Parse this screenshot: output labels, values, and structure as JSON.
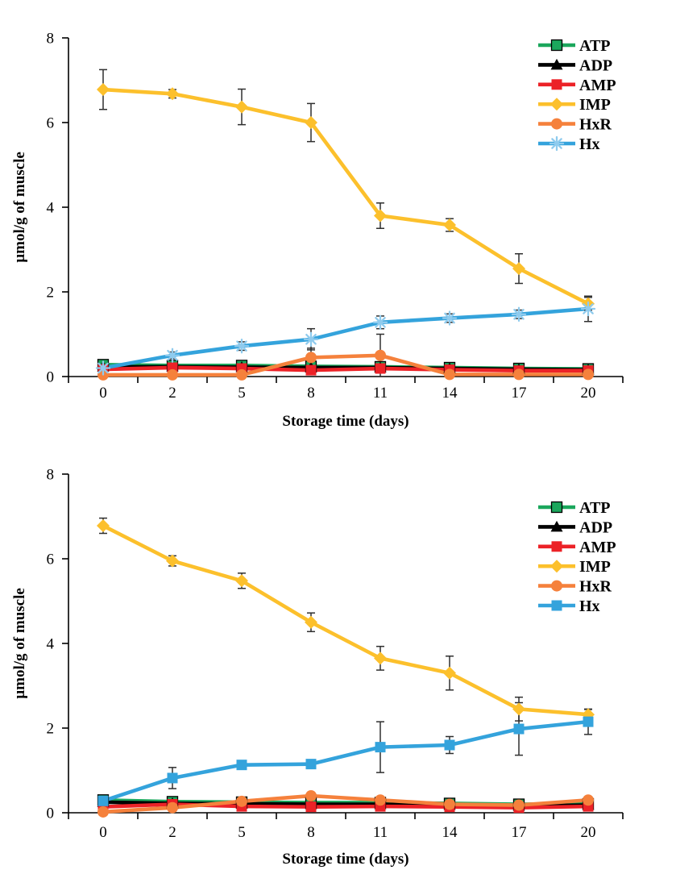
{
  "page": {
    "background": "#ffffff"
  },
  "chart_data": [
    {
      "type": "line",
      "panel": "top",
      "xlabel": "Storage time (days)",
      "ylabel": "µmol/g of muscle",
      "x_categories": [
        "0",
        "2",
        "5",
        "8",
        "11",
        "14",
        "17",
        "20"
      ],
      "ylim": [
        0,
        8
      ],
      "yticks": [
        "0",
        "2",
        "4",
        "6",
        "8"
      ],
      "grid": false,
      "legend_position": "upper-right-inside",
      "legend_entries": [
        "ATP",
        "ADP",
        "AMP",
        "IMP",
        "HxR",
        "Hx"
      ],
      "series": [
        {
          "name": "ATP",
          "color": "#1BA75C",
          "marker": "square",
          "marker_fill": "#1BA75C",
          "marker_stroke": "#000000",
          "values": [
            0.28,
            0.26,
            0.26,
            0.24,
            0.23,
            0.21,
            0.19,
            0.18
          ],
          "errors": [
            0.05,
            0,
            0,
            0.08,
            0,
            0,
            0,
            0
          ]
        },
        {
          "name": "ADP",
          "color": "#000000",
          "marker": "triangle",
          "marker_fill": "#000000",
          "values": [
            0.23,
            0.23,
            0.22,
            0.21,
            0.21,
            0.19,
            0.17,
            0.16
          ],
          "errors": [
            0,
            0,
            0,
            0,
            0,
            0,
            0,
            0
          ]
        },
        {
          "name": "AMP",
          "color": "#EC2227",
          "marker": "square",
          "marker_fill": "#EC2227",
          "values": [
            0.17,
            0.21,
            0.19,
            0.15,
            0.19,
            0.16,
            0.14,
            0.14
          ],
          "errors": [
            0,
            0,
            0,
            0,
            0,
            0,
            0,
            0
          ]
        },
        {
          "name": "IMP",
          "color": "#FCC02C",
          "marker": "diamond",
          "marker_fill": "#FCC02C",
          "values": [
            6.78,
            6.68,
            6.37,
            6.0,
            3.8,
            3.58,
            2.55,
            1.72
          ],
          "errors": [
            0.47,
            0.1,
            0.42,
            0.45,
            0.3,
            0.15,
            0.35,
            0.15
          ]
        },
        {
          "name": "HxR",
          "color": "#F5813C",
          "marker": "circle",
          "marker_fill": "#F5813C",
          "values": [
            0.04,
            0.04,
            0.04,
            0.45,
            0.5,
            0.05,
            0.05,
            0.05
          ],
          "errors": [
            0,
            0,
            0,
            0.22,
            0.5,
            0,
            0,
            0
          ]
        },
        {
          "name": "Hx",
          "color": "#34A3DC",
          "marker": "asterisk",
          "marker_fill": "#8FCBEE",
          "values": [
            0.2,
            0.5,
            0.72,
            0.88,
            1.28,
            1.38,
            1.47,
            1.6
          ],
          "errors": [
            0.05,
            0.08,
            0.1,
            0.25,
            0.15,
            0.1,
            0.1,
            0.3
          ]
        }
      ]
    },
    {
      "type": "line",
      "panel": "bottom",
      "xlabel": "Storage time (days)",
      "ylabel": "µmol/g of muscle",
      "x_categories": [
        "0",
        "2",
        "5",
        "8",
        "11",
        "14",
        "17",
        "20"
      ],
      "ylim": [
        0,
        8
      ],
      "yticks": [
        "0",
        "2",
        "4",
        "6",
        "8"
      ],
      "grid": false,
      "legend_position": "upper-right-inside",
      "legend_entries": [
        "ATP",
        "ADP",
        "AMP",
        "IMP",
        "HxR",
        "Hx"
      ],
      "series": [
        {
          "name": "ATP",
          "color": "#1BA75C",
          "marker": "square",
          "marker_fill": "#1BA75C",
          "marker_stroke": "#000000",
          "values": [
            0.3,
            0.26,
            0.25,
            0.24,
            0.24,
            0.22,
            0.2,
            0.21
          ],
          "errors": [
            0,
            0,
            0,
            0,
            0,
            0,
            0,
            0
          ]
        },
        {
          "name": "ADP",
          "color": "#000000",
          "marker": "triangle",
          "marker_fill": "#000000",
          "values": [
            0.25,
            0.22,
            0.21,
            0.2,
            0.2,
            0.18,
            0.16,
            0.18
          ],
          "errors": [
            0,
            0,
            0,
            0,
            0,
            0,
            0,
            0
          ]
        },
        {
          "name": "AMP",
          "color": "#EC2227",
          "marker": "square",
          "marker_fill": "#EC2227",
          "values": [
            0.14,
            0.2,
            0.15,
            0.14,
            0.15,
            0.14,
            0.12,
            0.15
          ],
          "errors": [
            0,
            0,
            0,
            0,
            0,
            0,
            0,
            0
          ]
        },
        {
          "name": "IMP",
          "color": "#FCC02C",
          "marker": "diamond",
          "marker_fill": "#FCC02C",
          "values": [
            6.78,
            5.95,
            5.48,
            4.5,
            3.65,
            3.3,
            2.45,
            2.32
          ],
          "errors": [
            0.18,
            0.12,
            0.18,
            0.22,
            0.28,
            0.4,
            0.28,
            0.12
          ]
        },
        {
          "name": "HxR",
          "color": "#F5813C",
          "marker": "circle",
          "marker_fill": "#F5813C",
          "values": [
            0.02,
            0.12,
            0.27,
            0.4,
            0.3,
            0.2,
            0.18,
            0.3
          ],
          "errors": [
            0,
            0,
            0,
            0,
            0,
            0,
            0,
            0
          ]
        },
        {
          "name": "Hx",
          "color": "#34A3DC",
          "marker": "square",
          "marker_fill": "#34A3DC",
          "values": [
            0.28,
            0.82,
            1.13,
            1.15,
            1.55,
            1.6,
            1.98,
            2.15
          ],
          "errors": [
            0.12,
            0.25,
            0,
            0,
            0.6,
            0.2,
            0.62,
            0.3
          ]
        }
      ]
    }
  ]
}
